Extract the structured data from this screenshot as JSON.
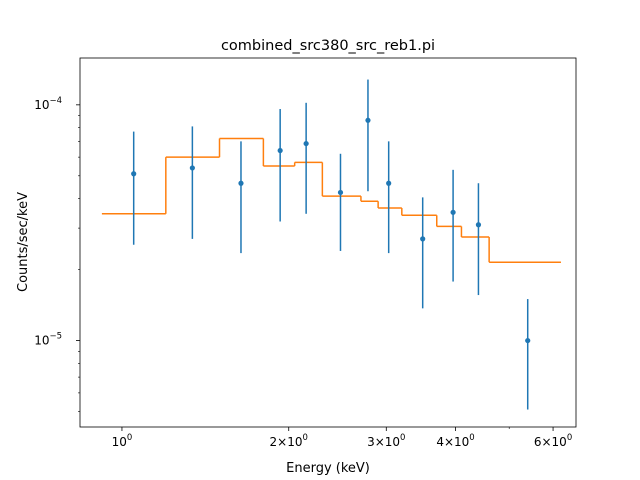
{
  "chart_data": {
    "type": "scatter",
    "title": "combined_src380_src_reb1.pi",
    "xlabel": "Energy (keV)",
    "ylabel": "Counts/sec/keV",
    "xscale": "log",
    "yscale": "log",
    "xlim": [
      0.84,
      6.6
    ],
    "ylim": [
      4.3e-06,
      0.000158
    ],
    "grid": false,
    "x_ticks": [
      {
        "value": 1,
        "base": "10",
        "exp": "0"
      },
      {
        "value": 2,
        "base": "2×10",
        "exp": "0"
      },
      {
        "value": 3,
        "base": "3×10",
        "exp": "0"
      },
      {
        "value": 4,
        "base": "4×10",
        "exp": "0"
      },
      {
        "value": 6,
        "base": "6×10",
        "exp": "0"
      }
    ],
    "y_ticks": [
      {
        "value": 0.0001,
        "base": "10",
        "exp": "−4"
      },
      {
        "value": 1e-05,
        "base": "10",
        "exp": "−5"
      }
    ],
    "series": [
      {
        "kind": "data",
        "color": "#1f77b4",
        "points": [
          {
            "x": 1.05,
            "y": 5.1e-05,
            "ylo": 2.55e-05,
            "yhi": 7.7e-05
          },
          {
            "x": 1.34,
            "y": 5.4e-05,
            "ylo": 2.7e-05,
            "yhi": 8.1e-05
          },
          {
            "x": 1.64,
            "y": 4.65e-05,
            "ylo": 2.35e-05,
            "yhi": 7e-05
          },
          {
            "x": 1.93,
            "y": 6.4e-05,
            "ylo": 3.2e-05,
            "yhi": 9.6e-05
          },
          {
            "x": 2.15,
            "y": 6.85e-05,
            "ylo": 3.45e-05,
            "yhi": 0.000102
          },
          {
            "x": 2.48,
            "y": 4.25e-05,
            "ylo": 2.4e-05,
            "yhi": 6.2e-05
          },
          {
            "x": 2.78,
            "y": 8.6e-05,
            "ylo": 4.3e-05,
            "yhi": 0.000128
          },
          {
            "x": 3.03,
            "y": 4.65e-05,
            "ylo": 2.35e-05,
            "yhi": 7e-05
          },
          {
            "x": 3.49,
            "y": 2.7e-05,
            "ylo": 1.37e-05,
            "yhi": 4.05e-05
          },
          {
            "x": 3.96,
            "y": 3.5e-05,
            "ylo": 1.78e-05,
            "yhi": 5.3e-05
          },
          {
            "x": 4.4,
            "y": 3.1e-05,
            "ylo": 1.56e-05,
            "yhi": 4.65e-05
          },
          {
            "x": 5.4,
            "y": 1e-05,
            "ylo": 5.1e-06,
            "yhi": 1.5e-05
          }
        ]
      },
      {
        "kind": "model",
        "color": "#ff7f0e",
        "steps": [
          {
            "x0": 0.92,
            "x1": 1.2,
            "y": 3.45e-05
          },
          {
            "x0": 1.2,
            "x1": 1.5,
            "y": 6e-05
          },
          {
            "x0": 1.5,
            "x1": 1.8,
            "y": 7.2e-05
          },
          {
            "x0": 1.8,
            "x1": 2.05,
            "y": 5.5e-05
          },
          {
            "x0": 2.05,
            "x1": 2.3,
            "y": 5.7e-05
          },
          {
            "x0": 2.3,
            "x1": 2.7,
            "y": 4.1e-05
          },
          {
            "x0": 2.7,
            "x1": 2.9,
            "y": 3.9e-05
          },
          {
            "x0": 2.9,
            "x1": 3.2,
            "y": 3.65e-05
          },
          {
            "x0": 3.2,
            "x1": 3.7,
            "y": 3.4e-05
          },
          {
            "x0": 3.7,
            "x1": 4.1,
            "y": 3.05e-05
          },
          {
            "x0": 4.1,
            "x1": 4.6,
            "y": 2.75e-05
          },
          {
            "x0": 4.6,
            "x1": 6.2,
            "y": 2.15e-05
          }
        ]
      }
    ]
  }
}
